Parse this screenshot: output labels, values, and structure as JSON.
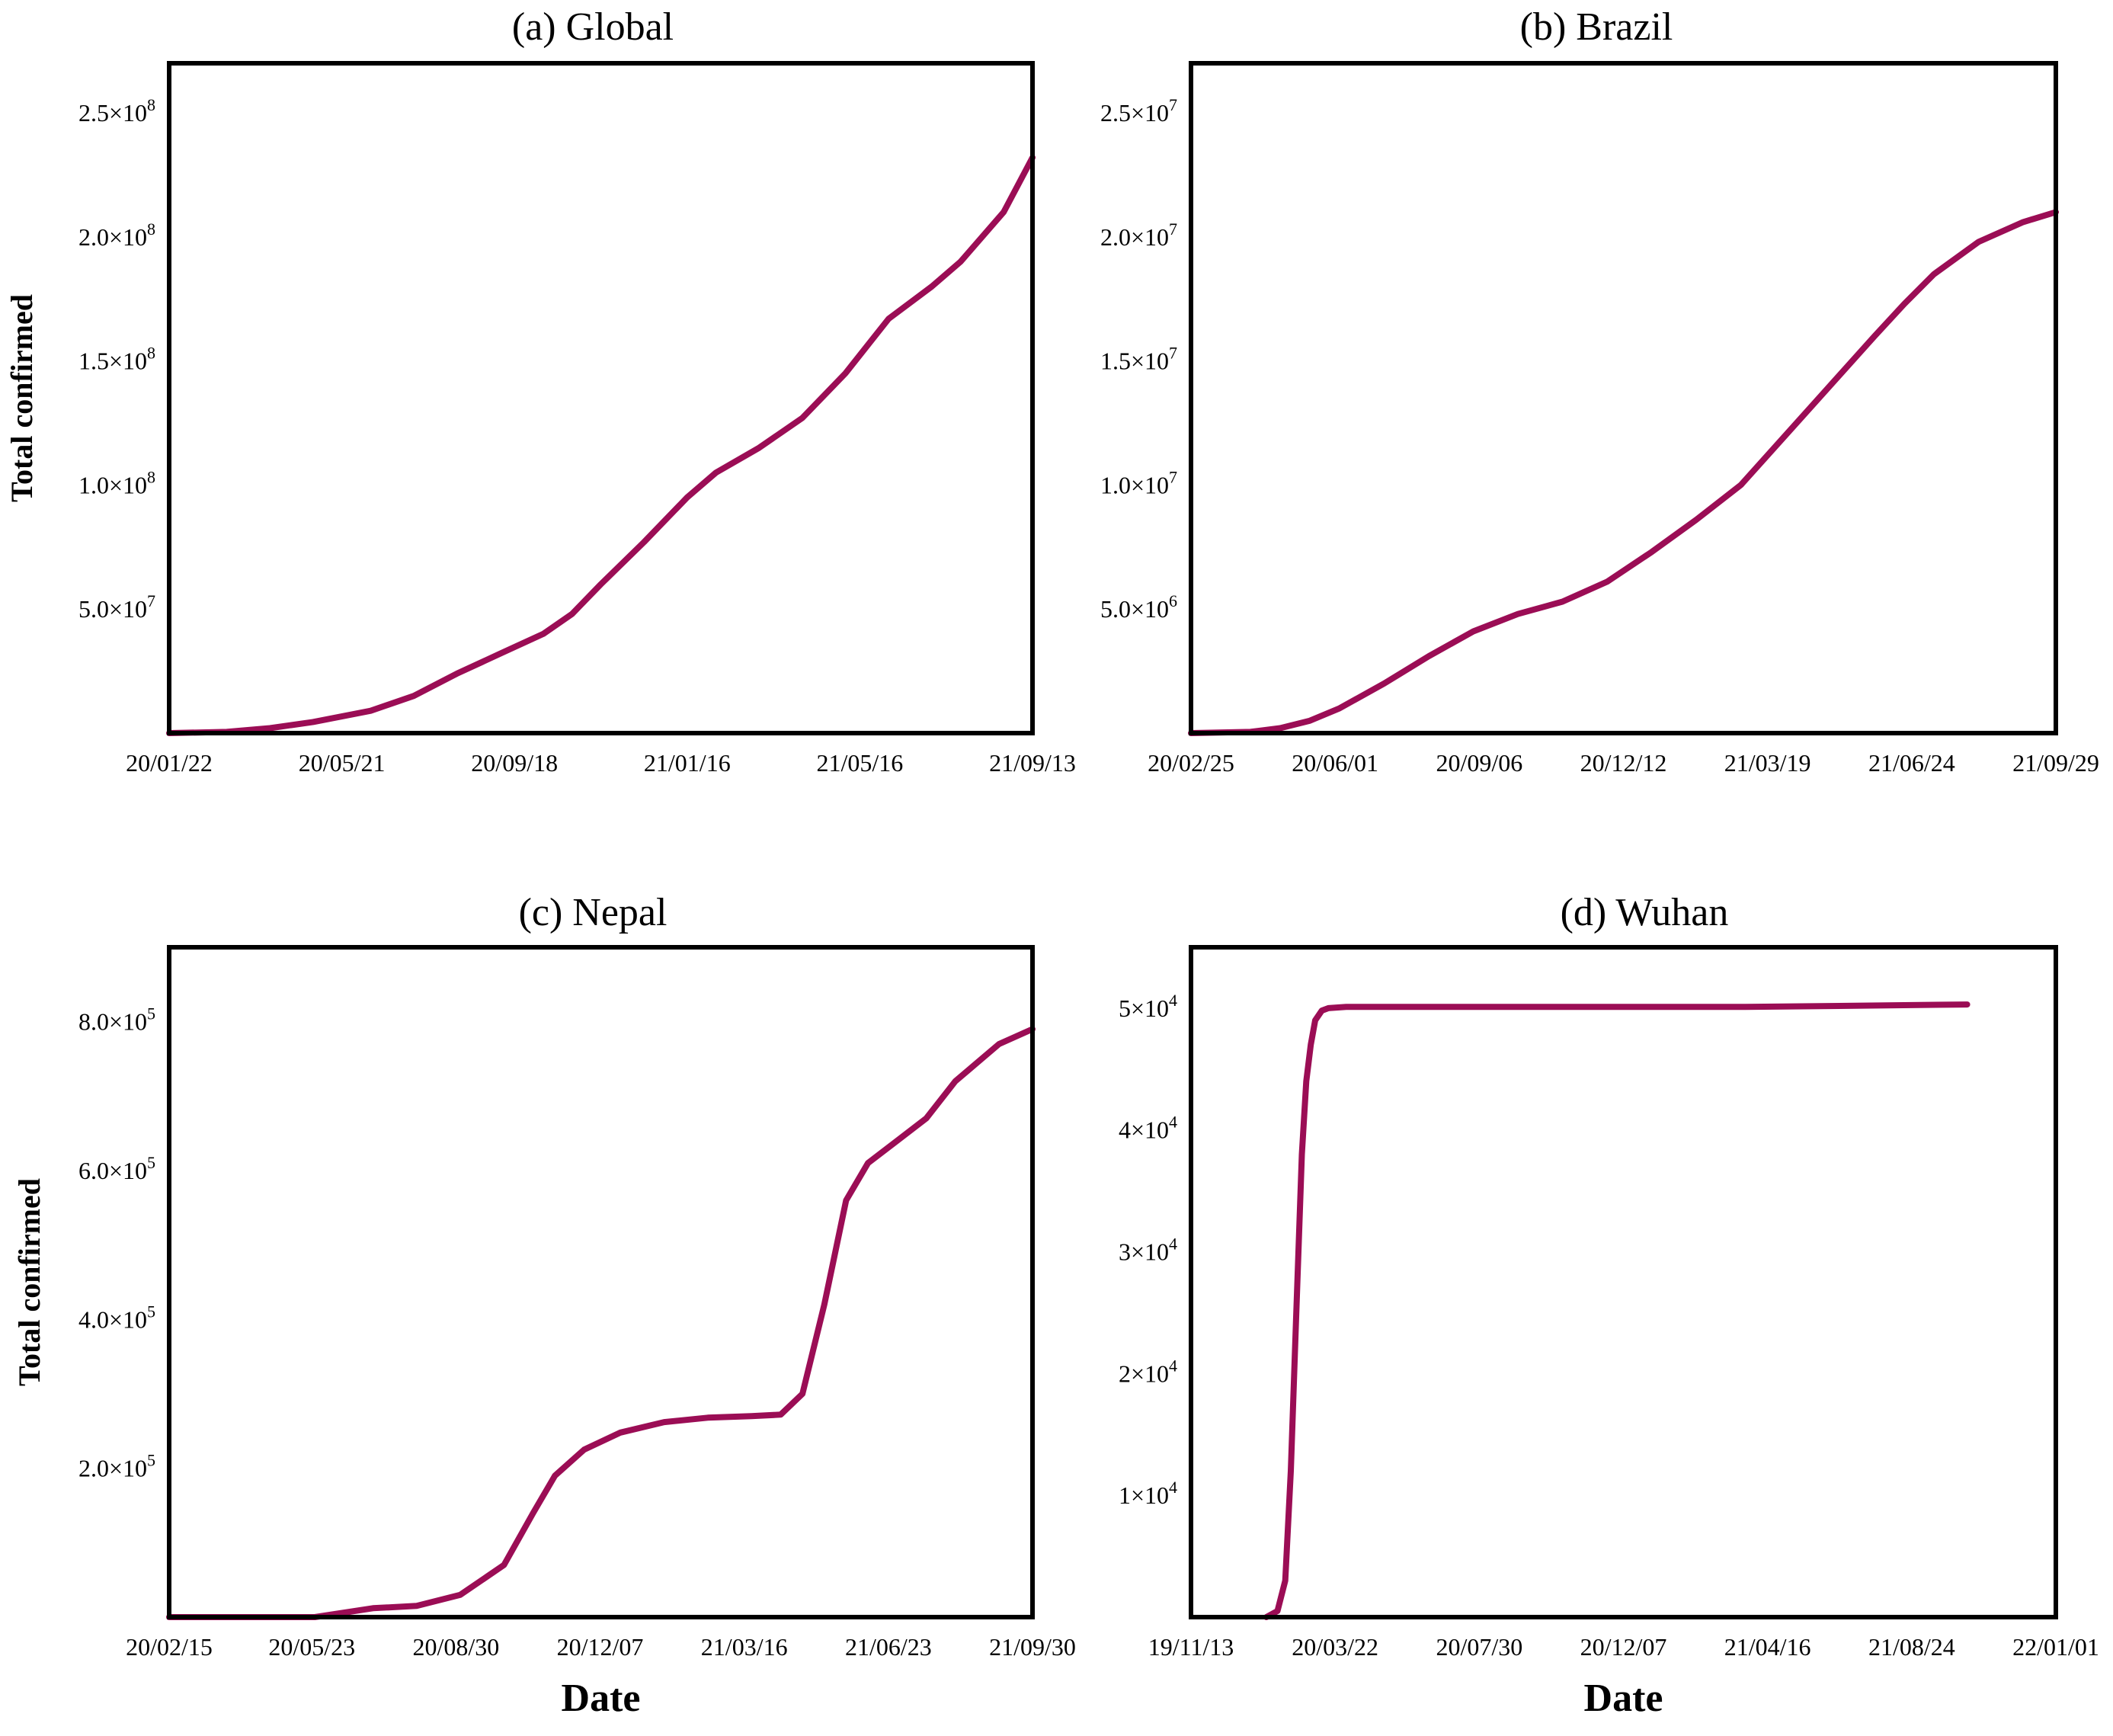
{
  "colors": {
    "series": "#9b0d55",
    "axis": "#000000",
    "background": "#ffffff"
  },
  "chart_data": [
    {
      "id": "a",
      "type": "line",
      "title": "(a) Global",
      "ylabel": "Total confirmed",
      "xlabel": "",
      "xlim": [
        0,
        600
      ],
      "ylim": [
        0,
        270000000
      ],
      "x_ticks": [
        {
          "pos": 0,
          "label": "20/01/22"
        },
        {
          "pos": 120,
          "label": "20/05/21"
        },
        {
          "pos": 240,
          "label": "20/09/18"
        },
        {
          "pos": 360,
          "label": "21/01/16"
        },
        {
          "pos": 480,
          "label": "21/05/16"
        },
        {
          "pos": 600,
          "label": "21/09/13"
        }
      ],
      "y_ticks": [
        {
          "value": 50000000,
          "mant": "5.0",
          "exp": "7"
        },
        {
          "value": 100000000,
          "mant": "1.0",
          "exp": "8"
        },
        {
          "value": 150000000,
          "mant": "1.5",
          "exp": "8"
        },
        {
          "value": 200000000,
          "mant": "2.0",
          "exp": "8"
        },
        {
          "value": 250000000,
          "mant": "2.5",
          "exp": "8"
        }
      ],
      "series": [
        {
          "name": "Global",
          "x": [
            0,
            40,
            70,
            100,
            140,
            170,
            200,
            230,
            260,
            280,
            300,
            330,
            360,
            380,
            410,
            440,
            470,
            500,
            530,
            550,
            580,
            600
          ],
          "y": [
            0,
            500000,
            2000000,
            4500000,
            9000000,
            15000000,
            24000000,
            32000000,
            40000000,
            48000000,
            60000000,
            77000000,
            95000000,
            105000000,
            115000000,
            127000000,
            145000000,
            167000000,
            180000000,
            190000000,
            210000000,
            232000000
          ]
        }
      ]
    },
    {
      "id": "b",
      "type": "line",
      "title": "(b) Brazil",
      "ylabel": "",
      "xlabel": "",
      "xlim": [
        0,
        582
      ],
      "ylim": [
        0,
        27000000
      ],
      "x_ticks": [
        {
          "pos": 0,
          "label": "20/02/25"
        },
        {
          "pos": 97,
          "label": "20/06/01"
        },
        {
          "pos": 194,
          "label": "20/09/06"
        },
        {
          "pos": 291,
          "label": "20/12/12"
        },
        {
          "pos": 388,
          "label": "21/03/19"
        },
        {
          "pos": 485,
          "label": "21/06/24"
        },
        {
          "pos": 582,
          "label": "21/09/29"
        }
      ],
      "y_ticks": [
        {
          "value": 5000000,
          "mant": "5.0",
          "exp": "6"
        },
        {
          "value": 10000000,
          "mant": "1.0",
          "exp": "7"
        },
        {
          "value": 15000000,
          "mant": "1.5",
          "exp": "7"
        },
        {
          "value": 20000000,
          "mant": "2.0",
          "exp": "7"
        },
        {
          "value": 25000000,
          "mant": "2.5",
          "exp": "7"
        }
      ],
      "series": [
        {
          "name": "Brazil",
          "x": [
            0,
            40,
            60,
            80,
            100,
            130,
            160,
            190,
            220,
            250,
            280,
            310,
            340,
            370,
            400,
            430,
            460,
            480,
            500,
            530,
            560,
            582
          ],
          "y": [
            0,
            50000,
            200000,
            500000,
            1000000,
            2000000,
            3100000,
            4100000,
            4800000,
            5300000,
            6100000,
            7300000,
            8600000,
            10000000,
            12000000,
            14000000,
            16000000,
            17300000,
            18500000,
            19800000,
            20600000,
            21000000
          ]
        }
      ]
    },
    {
      "id": "c",
      "type": "line",
      "title": "(c) Nepal",
      "ylabel": "Total confirmed",
      "xlabel": "Date",
      "xlim": [
        0,
        593
      ],
      "ylim": [
        0,
        900000
      ],
      "x_ticks": [
        {
          "pos": 0,
          "label": "20/02/15"
        },
        {
          "pos": 98,
          "label": "20/05/23"
        },
        {
          "pos": 197,
          "label": "20/08/30"
        },
        {
          "pos": 296,
          "label": "20/12/07"
        },
        {
          "pos": 395,
          "label": "21/03/16"
        },
        {
          "pos": 494,
          "label": "21/06/23"
        },
        {
          "pos": 593,
          "label": "21/09/30"
        }
      ],
      "y_ticks": [
        {
          "value": 200000,
          "mant": "2.0",
          "exp": "5"
        },
        {
          "value": 400000,
          "mant": "4.0",
          "exp": "5"
        },
        {
          "value": 600000,
          "mant": "6.0",
          "exp": "5"
        },
        {
          "value": 800000,
          "mant": "8.0",
          "exp": "5"
        }
      ],
      "series": [
        {
          "name": "Nepal",
          "x": [
            0,
            100,
            140,
            170,
            200,
            230,
            250,
            265,
            285,
            310,
            340,
            370,
            400,
            420,
            435,
            450,
            465,
            480,
            500,
            520,
            540,
            570,
            593
          ],
          "y": [
            0,
            0,
            12000,
            15000,
            30000,
            70000,
            140000,
            190000,
            225000,
            248000,
            262000,
            268000,
            270000,
            272000,
            300000,
            420000,
            560000,
            610000,
            640000,
            670000,
            720000,
            770000,
            790000
          ]
        }
      ]
    },
    {
      "id": "d",
      "type": "line",
      "title": "(d) Wuhan",
      "ylabel": "",
      "xlabel": "Date",
      "xlim": [
        0,
        780
      ],
      "ylim": [
        0,
        55000
      ],
      "x_ticks": [
        {
          "pos": 0,
          "label": "19/11/13"
        },
        {
          "pos": 130,
          "label": "20/03/22"
        },
        {
          "pos": 260,
          "label": "20/07/30"
        },
        {
          "pos": 390,
          "label": "20/12/07"
        },
        {
          "pos": 520,
          "label": "21/04/16"
        },
        {
          "pos": 650,
          "label": "21/08/24"
        },
        {
          "pos": 780,
          "label": "22/01/01"
        }
      ],
      "y_ticks": [
        {
          "value": 10000,
          "mant": "1",
          "exp": "4"
        },
        {
          "value": 20000,
          "mant": "2",
          "exp": "4"
        },
        {
          "value": 30000,
          "mant": "3",
          "exp": "4"
        },
        {
          "value": 40000,
          "mant": "4",
          "exp": "4"
        },
        {
          "value": 50000,
          "mant": "5",
          "exp": "4"
        }
      ],
      "series": [
        {
          "name": "Wuhan",
          "x": [
            68,
            78,
            85,
            90,
            95,
            100,
            104,
            108,
            112,
            118,
            124,
            140,
            300,
            500,
            700
          ],
          "y": [
            0,
            500,
            3000,
            12000,
            25000,
            38000,
            44000,
            47000,
            49000,
            49800,
            50000,
            50100,
            50100,
            50100,
            50300
          ]
        }
      ]
    }
  ]
}
